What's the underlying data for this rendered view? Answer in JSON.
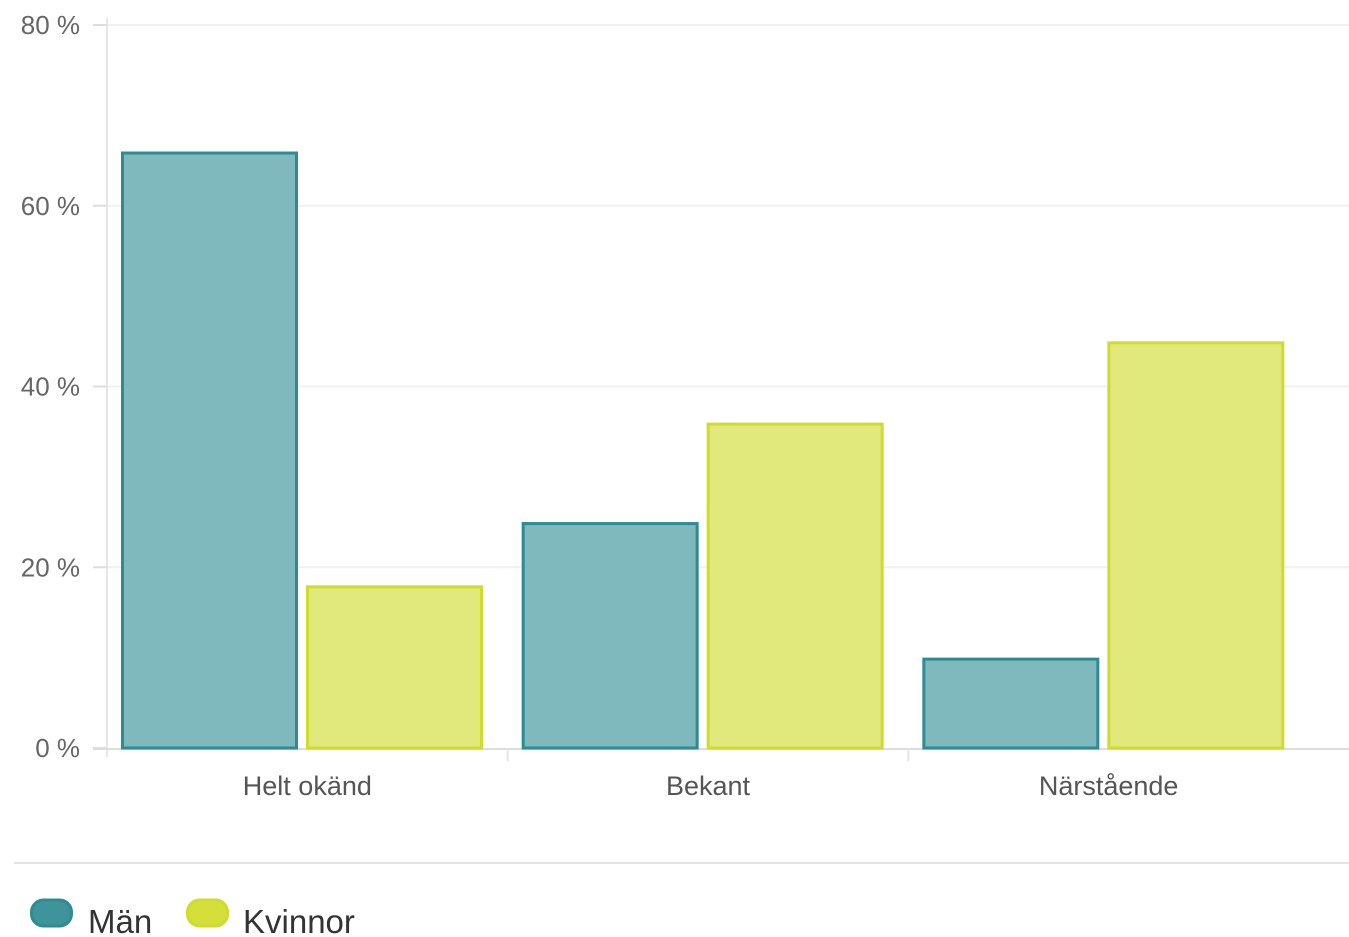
{
  "chart_data": {
    "type": "bar",
    "categories": [
      "Helt okänd",
      "Bekant",
      "Närstående"
    ],
    "series": [
      {
        "name": "Män",
        "values": [
          66,
          25,
          10
        ],
        "color": "#2e8b92",
        "fill": "#7fb8bd"
      },
      {
        "name": "Kvinnor",
        "values": [
          18,
          36,
          45
        ],
        "color": "#cfdc2e",
        "fill": "#e1e87c"
      }
    ],
    "yticks": [
      "0 %",
      "20 %",
      "40 %",
      "60 %",
      "80 %"
    ],
    "ytick_values": [
      0,
      20,
      40,
      60,
      80
    ],
    "ylim": [
      0,
      80
    ],
    "grid": true,
    "legend_position": "bottom-left"
  }
}
